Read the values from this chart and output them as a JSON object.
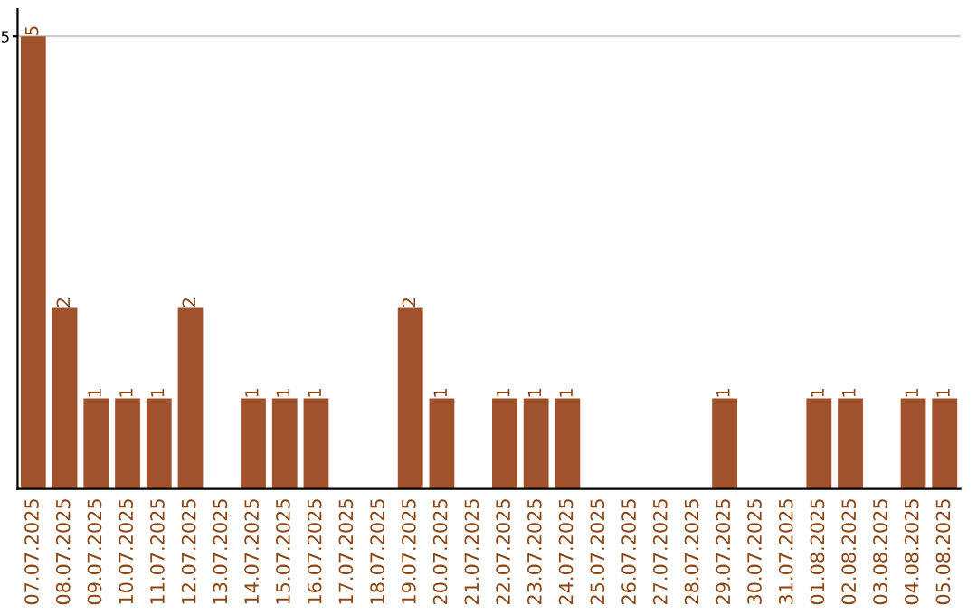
{
  "chart_data": {
    "type": "bar",
    "categories": [
      "07.07.2025",
      "08.07.2025",
      "09.07.2025",
      "10.07.2025",
      "11.07.2025",
      "12.07.2025",
      "13.07.2025",
      "14.07.2025",
      "15.07.2025",
      "16.07.2025",
      "17.07.2025",
      "18.07.2025",
      "19.07.2025",
      "20.07.2025",
      "21.07.2025",
      "22.07.2025",
      "23.07.2025",
      "24.07.2025",
      "25.07.2025",
      "26.07.2025",
      "27.07.2025",
      "28.07.2025",
      "29.07.2025",
      "30.07.2025",
      "31.07.2025",
      "01.08.2025",
      "02.08.2025",
      "03.08.2025",
      "04.08.2025",
      "05.08.2025"
    ],
    "values": [
      5,
      2,
      1,
      1,
      1,
      2,
      0,
      1,
      1,
      1,
      0,
      0,
      2,
      1,
      0,
      1,
      1,
      1,
      0,
      0,
      0,
      0,
      1,
      0,
      0,
      1,
      1,
      0,
      1,
      1
    ],
    "value_labels": [
      "5",
      "2",
      "1",
      "1",
      "1",
      "2",
      null,
      "1",
      "1",
      "1",
      null,
      null,
      "2",
      "1",
      null,
      "1",
      "1",
      "1",
      null,
      null,
      null,
      null,
      "1",
      null,
      null,
      "1",
      "1",
      null,
      "1",
      "1"
    ],
    "color": "#a0522d",
    "ylim": [
      0,
      5.3
    ],
    "yticks": [
      5
    ],
    "grid": "y"
  }
}
